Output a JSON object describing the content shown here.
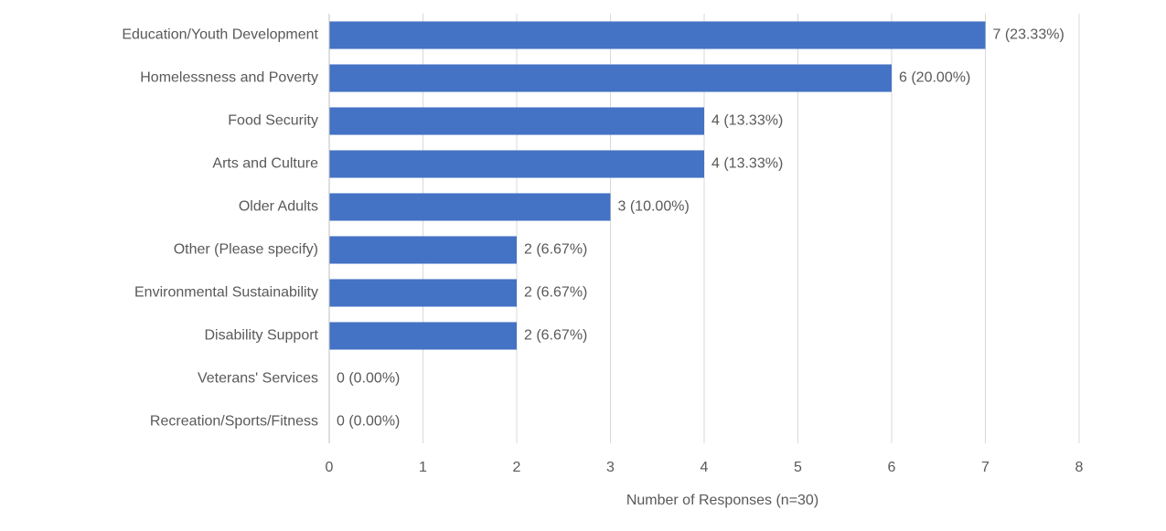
{
  "chart_data": {
    "type": "hbar",
    "x_label": "Number of Responses (n=30)",
    "categories": [
      "Education/Youth Development",
      "Homelessness and Poverty",
      "Food Security",
      "Arts and Culture",
      "Older Adults",
      "Other (Please specify)",
      "Environmental Sustainability",
      "Disability Support",
      "Veterans' Services",
      "Recreation/Sports/Fitness"
    ],
    "values": [
      7,
      6,
      4,
      4,
      3,
      2,
      2,
      2,
      0,
      0
    ],
    "value_labels": [
      "7 (23.33%)",
      "6 (20.00%)",
      "4 (13.33%)",
      "4 (13.33%)",
      "3 (10.00%)",
      "2 (6.67%)",
      "2 (6.67%)",
      "2 (6.67%)",
      "0 (0.00%)",
      "0 (0.00%)"
    ],
    "color": "#4472c4",
    "xlim": [
      0,
      8
    ],
    "xticks": [
      0,
      1,
      2,
      3,
      4,
      5,
      6,
      7,
      8
    ],
    "grid": true
  }
}
